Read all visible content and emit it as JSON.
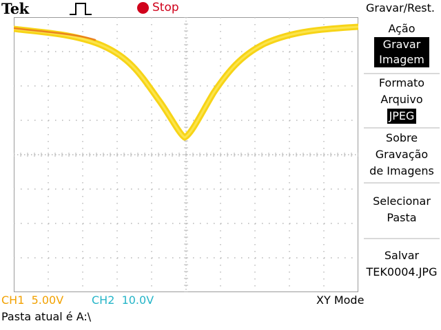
{
  "status_bar": {
    "brand": "Tek",
    "trigger_icon": "rising-pulse-icon",
    "run_state": "Stop",
    "run_state_color": "#d0021b"
  },
  "menu": {
    "title": "Gravar/Rest.",
    "action_label_line1": "Ação",
    "action_value_line1": "Gravar",
    "action_value_line2": "Imagem",
    "format_label_line1": "Formato",
    "format_label_line2": "Arquivo",
    "format_value": "JPEG",
    "about_line1": "Sobre",
    "about_line2": "Gravação",
    "about_line3": "de Imagens",
    "select_line1": "Selecionar",
    "select_line2": "Pasta",
    "save_line1": "Salvar",
    "save_line2": "TEK0004.JPG"
  },
  "readouts": {
    "ch1_label": "CH1",
    "ch1_scale": "5.00V",
    "ch2_label": "CH2",
    "ch2_scale": "10.0V",
    "mode": "XY Mode",
    "ch1_color": "#f2a100",
    "ch2_color": "#25b5c8"
  },
  "footer": {
    "current_folder": "Pasta atual é A:\\"
  },
  "trace": {
    "color": "#f7d417",
    "accent_color": "#e8731a"
  }
}
